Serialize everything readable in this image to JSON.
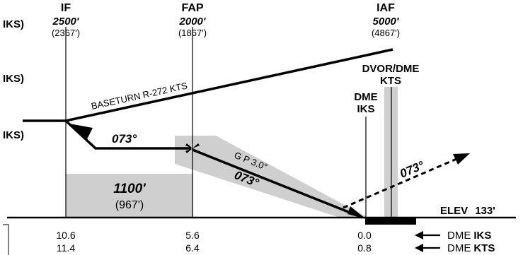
{
  "fixes": {
    "if": {
      "name": "IF",
      "alt": "2500'",
      "alt_agl": "(2367')"
    },
    "fap": {
      "name": "FAP",
      "alt": "2000'",
      "alt_agl": "(1867')"
    },
    "iaf": {
      "name": "IAF",
      "alt": "5000'",
      "alt_agl": "(4867')"
    }
  },
  "left_labels": {
    "top": "IKS)",
    "mid": "IKS)",
    "low": "IKS)"
  },
  "stations": {
    "dvor_dme_line1": "DVOR/DME",
    "dvor_dme_line2": "KTS",
    "dme_line1": "DME",
    "dme_line2": "IKS"
  },
  "route": {
    "baseturn": "BASETURN R-272 KTS",
    "course_level": "073°",
    "gp_label": "G P 3.0°",
    "course_final": "073°",
    "missed_course": "073°"
  },
  "minimum_box": {
    "alt": "1100'",
    "alt_agl": "(967')"
  },
  "elevation": {
    "label": "ELEV",
    "value": "133'"
  },
  "dme_table": {
    "iks_values": [
      "10.6",
      "5.6",
      "0.0"
    ],
    "kts_values": [
      "11.4",
      "6.4",
      "0.8"
    ],
    "iks_prefix": "DME",
    "iks_station": "IKS",
    "kts_prefix": "DME",
    "kts_station": "KTS"
  }
}
